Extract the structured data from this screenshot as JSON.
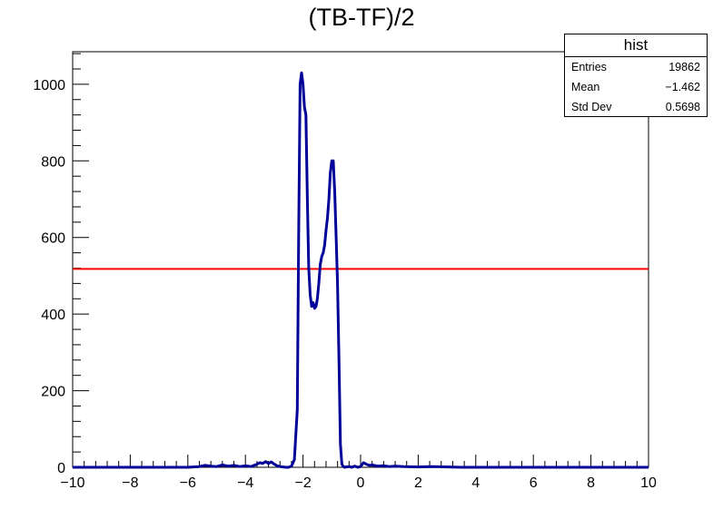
{
  "chart_data": {
    "type": "histogram",
    "title": "(TB-TF)/2",
    "xlabel": "",
    "ylabel": "",
    "xlim": [
      -10,
      10
    ],
    "ylim": [
      0,
      1085
    ],
    "xticks": [
      -10,
      -8,
      -6,
      -4,
      -2,
      0,
      2,
      4,
      6,
      8,
      10
    ],
    "yticks": [
      0,
      200,
      400,
      600,
      800,
      1000
    ],
    "grid": false,
    "series": [
      {
        "color": "#000099",
        "x": [
          -10,
          -6,
          -5.6,
          -5.4,
          -5.2,
          -5,
          -4.8,
          -4.6,
          -4.4,
          -4.2,
          -4,
          -3.8,
          -3.6,
          -3.5,
          -3.4,
          -3.3,
          -3.2,
          -3.1,
          -3,
          -2.9,
          -2.8,
          -2.7,
          -2.6,
          -2.5,
          -2.4,
          -2.3,
          -2.2,
          -2.15,
          -2.1,
          -2.05,
          -2.0,
          -1.95,
          -1.9,
          -1.85,
          -1.8,
          -1.75,
          -1.7,
          -1.65,
          -1.6,
          -1.55,
          -1.5,
          -1.45,
          -1.4,
          -1.35,
          -1.3,
          -1.25,
          -1.2,
          -1.15,
          -1.1,
          -1.05,
          -1.0,
          -0.95,
          -0.9,
          -0.85,
          -0.8,
          -0.75,
          -0.7,
          -0.65,
          -0.6,
          -0.55,
          -0.5,
          -0.4,
          -0.3,
          -0.2,
          -0.1,
          0,
          0.1,
          0.2,
          0.3,
          0.4,
          0.6,
          0.8,
          1.0,
          1.2,
          1.5,
          2.0,
          2.5,
          3.0,
          3.5,
          4,
          10
        ],
        "y": [
          0,
          0,
          2,
          5,
          3,
          2,
          6,
          3,
          5,
          2,
          4,
          2,
          8,
          12,
          10,
          15,
          10,
          14,
          8,
          4,
          2,
          1,
          0,
          0,
          3,
          20,
          150,
          600,
          1000,
          1030,
          1000,
          940,
          920,
          700,
          520,
          450,
          420,
          430,
          415,
          420,
          440,
          480,
          530,
          550,
          560,
          580,
          620,
          650,
          700,
          770,
          800,
          800,
          720,
          600,
          480,
          280,
          60,
          8,
          2,
          0,
          1,
          2,
          0,
          3,
          0,
          2,
          12,
          8,
          5,
          6,
          3,
          4,
          2,
          3,
          2,
          1,
          2,
          1,
          0,
          0,
          0
        ]
      }
    ],
    "fit_line": {
      "y": 518,
      "color": "#ff0000"
    },
    "legend": "top-right"
  },
  "stats": {
    "title": "hist",
    "rows": [
      {
        "key": "Entries",
        "value": "19862"
      },
      {
        "key": "Mean",
        "value": "−1.462"
      },
      {
        "key": "Std Dev",
        "value": "0.5698"
      }
    ]
  }
}
